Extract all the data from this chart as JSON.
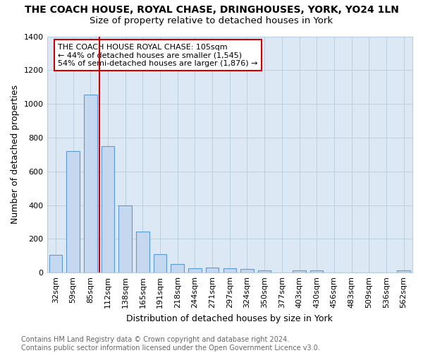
{
  "title": "THE COACH HOUSE, ROYAL CHASE, DRINGHOUSES, YORK, YO24 1LN",
  "subtitle": "Size of property relative to detached houses in York",
  "xlabel": "Distribution of detached houses by size in York",
  "ylabel": "Number of detached properties",
  "categories": [
    "32sqm",
    "59sqm",
    "85sqm",
    "112sqm",
    "138sqm",
    "165sqm",
    "191sqm",
    "218sqm",
    "244sqm",
    "271sqm",
    "297sqm",
    "324sqm",
    "350sqm",
    "377sqm",
    "403sqm",
    "430sqm",
    "456sqm",
    "483sqm",
    "509sqm",
    "536sqm",
    "562sqm"
  ],
  "values": [
    105,
    720,
    1055,
    750,
    400,
    245,
    110,
    50,
    25,
    30,
    25,
    20,
    13,
    0,
    13,
    13,
    0,
    0,
    0,
    0,
    13
  ],
  "bar_color": "#c5d8ef",
  "bar_edge_color": "#5b9bd5",
  "vline_color": "#cc0000",
  "annotation_text": "THE COACH HOUSE ROYAL CHASE: 105sqm\n← 44% of detached houses are smaller (1,545)\n54% of semi-detached houses are larger (1,876) →",
  "annotation_box_color": "#ffffff",
  "annotation_box_edge": "#cc0000",
  "ylim": [
    0,
    1400
  ],
  "yticks": [
    0,
    200,
    400,
    600,
    800,
    1000,
    1200,
    1400
  ],
  "footer": "Contains HM Land Registry data © Crown copyright and database right 2024.\nContains public sector information licensed under the Open Government Licence v3.0.",
  "bg_color": "#dce9f5",
  "fig_bg_color": "#ffffff",
  "title_fontsize": 10,
  "subtitle_fontsize": 9.5,
  "axis_label_fontsize": 9,
  "tick_fontsize": 8,
  "footer_fontsize": 7,
  "bar_width": 0.75
}
